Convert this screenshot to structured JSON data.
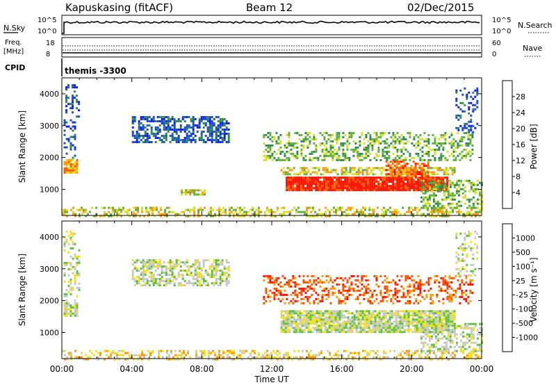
{
  "header": {
    "station": "Kapuskasing (fitACF)",
    "beam": "Beam 12",
    "date": "02/Dec/2015"
  },
  "noise_panel": {
    "left_label": "N.Sky",
    "right_label": "N.Search",
    "left_ticks": [
      "10^5",
      "10^0"
    ],
    "right_ticks": [
      "10^5",
      "10^0"
    ]
  },
  "freq_panel": {
    "left_label_line1": "Freq.",
    "left_label_line2": "[MHz]",
    "right_label": "Nave",
    "left_ticks": [
      "18",
      "8"
    ],
    "right_ticks": [
      "60",
      "0"
    ]
  },
  "cpid_panel": {
    "label": "CPID",
    "value": "themis -3300"
  },
  "chart_data": [
    {
      "type": "heatmap",
      "title": "",
      "parameter": "Power",
      "colorbar_label": "Power [dB]",
      "colorbar_ticks": [
        "4",
        "8",
        "12",
        "16",
        "20",
        "24",
        "28"
      ],
      "colorbar_colors": [
        "#1020f0",
        "#1a50c8",
        "#2f8a50",
        "#60b040",
        "#d8e020",
        "#ff9a10",
        "#ff5a00",
        "#ff1000"
      ],
      "ylabel": "Slant Range [km]",
      "yticks": [
        "1000",
        "2000",
        "3000",
        "4000"
      ],
      "ylim": [
        180,
        4500
      ],
      "xlim_hours": [
        0,
        24
      ],
      "regions": [
        {
          "t0": 0.0,
          "t1": 24.0,
          "r0": 180,
          "r1": 450,
          "level": 4,
          "density": 0.45
        },
        {
          "t0": 0.1,
          "t1": 0.9,
          "r0": 1500,
          "r1": 1950,
          "level": 5,
          "density": 0.9
        },
        {
          "t0": 0.1,
          "t1": 0.8,
          "r0": 2000,
          "r1": 3200,
          "level": 1,
          "density": 0.35
        },
        {
          "t0": 0.2,
          "t1": 1.0,
          "r0": 3300,
          "r1": 4300,
          "level": 1,
          "density": 0.35
        },
        {
          "t0": 4.0,
          "t1": 9.5,
          "r0": 2500,
          "r1": 3300,
          "level": 1,
          "density": 0.6
        },
        {
          "t0": 6.8,
          "t1": 8.2,
          "r0": 850,
          "r1": 1000,
          "level": 4,
          "density": 0.8
        },
        {
          "t0": 11.5,
          "t1": 23.5,
          "r0": 1900,
          "r1": 2800,
          "level": 3,
          "density": 0.4
        },
        {
          "t0": 12.5,
          "t1": 22.5,
          "r0": 1450,
          "r1": 1700,
          "level": 4,
          "density": 0.6
        },
        {
          "t0": 12.8,
          "t1": 22.0,
          "r0": 1000,
          "r1": 1400,
          "level": 7,
          "density": 0.95
        },
        {
          "t0": 18.5,
          "t1": 21.0,
          "r0": 1400,
          "r1": 1900,
          "level": 6,
          "density": 0.6
        },
        {
          "t0": 20.5,
          "t1": 24.0,
          "r0": 400,
          "r1": 1300,
          "level": 3,
          "density": 0.5
        },
        {
          "t0": 22.5,
          "t1": 23.8,
          "r0": 2800,
          "r1": 4200,
          "level": 1,
          "density": 0.3
        }
      ]
    },
    {
      "type": "heatmap",
      "title": "",
      "parameter": "Velocity",
      "colorbar_label": "Velocity [m s⁻¹]",
      "colorbar_ticks": [
        "1000",
        "500",
        "100",
        "25",
        "-25",
        "-100",
        "-500",
        "-1000"
      ],
      "colorbar_colors": [
        "#1020c0",
        "#2060d0",
        "#20a050",
        "#60c040",
        "#c8c8c8",
        "#f0e020",
        "#ff9a00",
        "#ff5000",
        "#ff1000"
      ],
      "ylabel": "Slant Range [km]",
      "yticks": [
        "1000",
        "2000",
        "3000",
        "4000"
      ],
      "ylim": [
        180,
        4500
      ],
      "xlabel": "Time UT",
      "xticks": [
        "00:00",
        "04:00",
        "08:00",
        "12:00",
        "16:00",
        "20:00",
        "00:00"
      ],
      "xlim_hours": [
        0,
        24
      ],
      "regions": [
        {
          "t0": 0.0,
          "t1": 24.0,
          "r0": 180,
          "r1": 450,
          "level": 5,
          "density": 0.4
        },
        {
          "t0": 0.1,
          "t1": 0.9,
          "r0": 1500,
          "r1": 1950,
          "level": 4,
          "density": 0.85
        },
        {
          "t0": 0.1,
          "t1": 1.0,
          "r0": 2000,
          "r1": 4200,
          "level": 4,
          "density": 0.3
        },
        {
          "t0": 4.0,
          "t1": 9.5,
          "r0": 2500,
          "r1": 3300,
          "level": 4,
          "density": 0.55
        },
        {
          "t0": 11.5,
          "t1": 23.5,
          "r0": 1900,
          "r1": 2800,
          "level": 7,
          "density": 0.35
        },
        {
          "t0": 12.5,
          "t1": 22.5,
          "r0": 1000,
          "r1": 1700,
          "level": 4,
          "density": 0.85
        },
        {
          "t0": 20.5,
          "t1": 24.0,
          "r0": 400,
          "r1": 1300,
          "level": 4,
          "density": 0.5
        },
        {
          "t0": 22.5,
          "t1": 23.8,
          "r0": 2800,
          "r1": 4200,
          "level": 4,
          "density": 0.3
        }
      ]
    }
  ]
}
